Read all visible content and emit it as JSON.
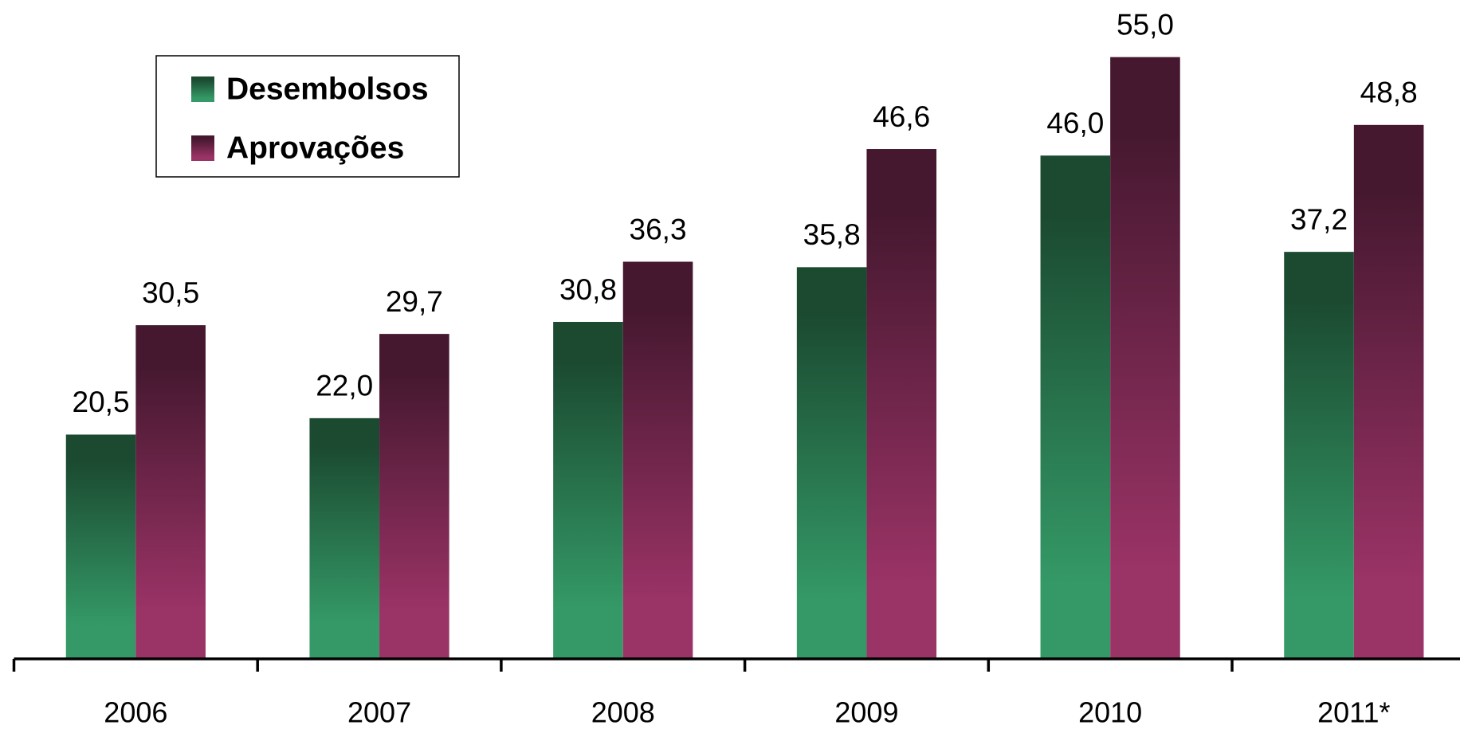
{
  "chart_data": {
    "type": "bar",
    "categories": [
      "2006",
      "2007",
      "2008",
      "2009",
      "2010",
      "2011*"
    ],
    "series": [
      {
        "name": "Desembolsos",
        "color": "#349966",
        "top_color": "#1b4a31",
        "values": [
          20.5,
          22.0,
          30.8,
          35.8,
          46.0,
          37.2
        ],
        "value_labels": [
          "20,5",
          "22,0",
          "30,8",
          "35,8",
          "46,0",
          "37,2"
        ]
      },
      {
        "name": "Aprovações",
        "color": "#9a3366",
        "top_color": "#45182f",
        "values": [
          30.5,
          29.7,
          36.3,
          46.6,
          55.0,
          48.8
        ],
        "value_labels": [
          "30,5",
          "29,7",
          "36,3",
          "46,6",
          "55,0",
          "48,8"
        ]
      }
    ],
    "ylim": [
      0,
      60
    ],
    "legend": "upper left"
  }
}
